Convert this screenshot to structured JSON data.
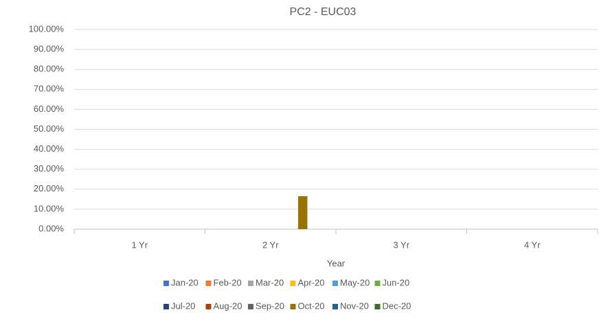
{
  "chart_data": {
    "type": "bar",
    "title": "PC2 - EUC03",
    "x_label": "Year",
    "categories": [
      "1 Yr",
      "2 Yr",
      "3 Yr",
      "4 Yr"
    ],
    "series": [
      {
        "name": "Jan-20",
        "color": "#4472C4",
        "values": [
          0,
          0,
          0,
          0
        ]
      },
      {
        "name": "Feb-20",
        "color": "#ED7D31",
        "values": [
          0,
          0,
          0,
          0
        ]
      },
      {
        "name": "Mar-20",
        "color": "#A5A5A5",
        "values": [
          0,
          0,
          0,
          0
        ]
      },
      {
        "name": "Apr-20",
        "color": "#FFC000",
        "values": [
          0,
          0,
          0,
          0
        ]
      },
      {
        "name": "May-20",
        "color": "#5B9BD5",
        "values": [
          0,
          0,
          0,
          0
        ]
      },
      {
        "name": "Jun-20",
        "color": "#70AD47",
        "values": [
          0,
          0,
          0,
          0
        ]
      },
      {
        "name": "Jul-20",
        "color": "#264478",
        "values": [
          0,
          0,
          0,
          0
        ]
      },
      {
        "name": "Aug-20",
        "color": "#9E480E",
        "values": [
          0,
          0,
          0,
          0
        ]
      },
      {
        "name": "Sep-20",
        "color": "#636363",
        "values": [
          0,
          0,
          0,
          0
        ]
      },
      {
        "name": "Oct-20",
        "color": "#997300",
        "values": [
          0,
          16.5,
          0,
          0
        ]
      },
      {
        "name": "Nov-20",
        "color": "#255E91",
        "values": [
          0,
          0,
          0,
          0
        ]
      },
      {
        "name": "Dec-20",
        "color": "#43682B",
        "values": [
          0,
          0,
          0,
          0
        ]
      }
    ],
    "ylim": [
      0,
      100
    ],
    "yticks": [
      {
        "value": 0,
        "label": "0.00%"
      },
      {
        "value": 10,
        "label": "10.00%"
      },
      {
        "value": 20,
        "label": "20.00%"
      },
      {
        "value": 30,
        "label": "30.00%"
      },
      {
        "value": 40,
        "label": "40.00%"
      },
      {
        "value": 50,
        "label": "50.00%"
      },
      {
        "value": 60,
        "label": "60.00%"
      },
      {
        "value": 70,
        "label": "70.00%"
      },
      {
        "value": 80,
        "label": "80.00%"
      },
      {
        "value": 90,
        "label": "90.00%"
      },
      {
        "value": 100,
        "label": "100.00%"
      }
    ],
    "grid": true,
    "legend": "bottom"
  }
}
